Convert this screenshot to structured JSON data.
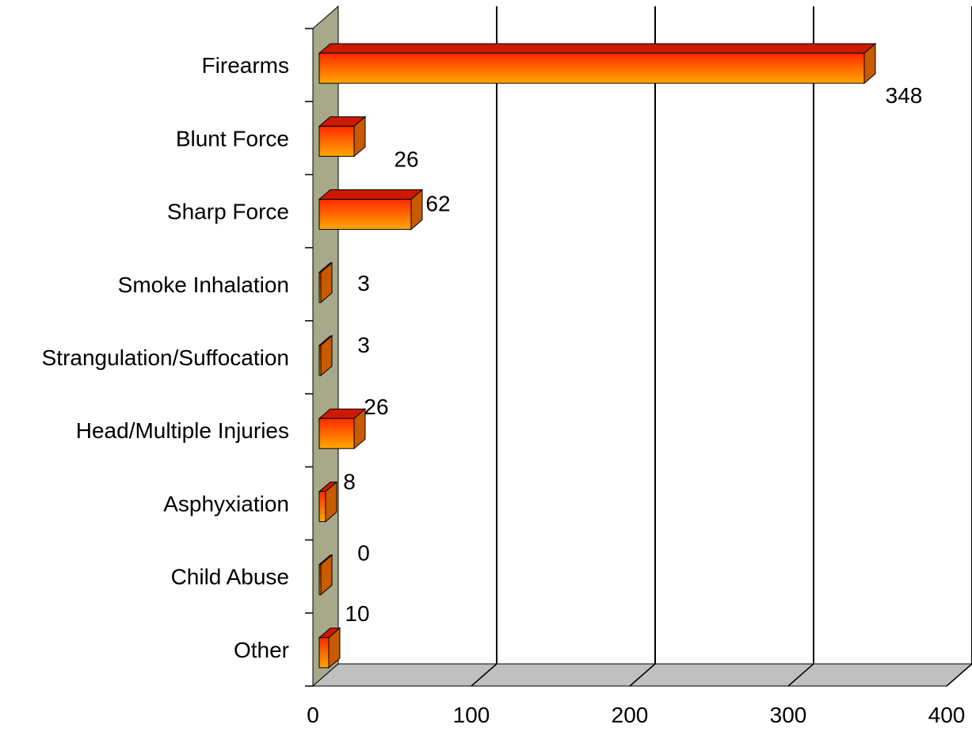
{
  "chart_data": {
    "type": "bar",
    "orientation": "horizontal",
    "three_d": true,
    "title": "",
    "xlabel": "",
    "ylabel": "",
    "categories": [
      "Firearms",
      "Blunt Force",
      "Sharp Force",
      "Smoke Inhalation",
      "Strangulation/Suffocation",
      "Head/Multiple Injuries",
      "Asphyxiation",
      "Child Abuse",
      "Other"
    ],
    "values": [
      348,
      26,
      62,
      3,
      3,
      26,
      8,
      0,
      10
    ],
    "data_labels": [
      "348",
      "26",
      "62",
      "3",
      "3",
      "26",
      "8",
      "0",
      "10"
    ],
    "xlim": [
      0,
      400
    ],
    "xticks": [
      "0",
      "100",
      "200",
      "300",
      "400"
    ],
    "grid": true,
    "legend": "none",
    "colors": {
      "bar_front_top": "#ff2a00",
      "bar_front_bottom": "#ffa800",
      "bar_top": "#cc1a00",
      "bar_side": "#c85a00",
      "wall": "#a8a88a",
      "floor": "#c0c0c0",
      "gridline": "#000000"
    }
  }
}
